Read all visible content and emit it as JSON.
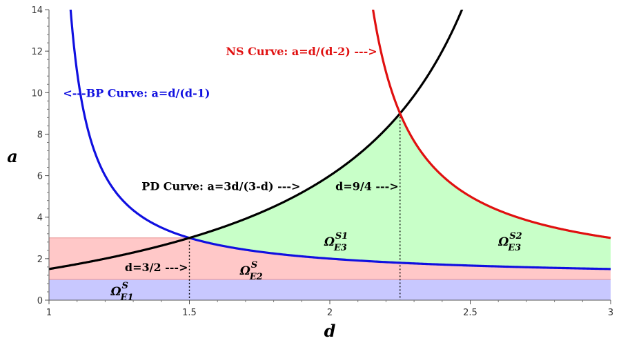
{
  "chart_data": {
    "type": "line",
    "xlabel": "d",
    "ylabel": "a",
    "xlim": [
      1,
      3
    ],
    "ylim": [
      0,
      14
    ],
    "x_ticks": [
      "1",
      "1.5",
      "2",
      "2.5",
      "3"
    ],
    "x_tick_values": [
      1,
      1.5,
      2,
      2.5,
      3
    ],
    "y_ticks": [
      "0",
      "2",
      "4",
      "6",
      "8",
      "10",
      "12",
      "14"
    ],
    "y_tick_values": [
      0,
      2,
      4,
      6,
      8,
      10,
      12,
      14
    ],
    "series": [
      {
        "key": "bp",
        "formula": "d/(d-1)",
        "color": "#1010e0",
        "domain": [
          1.05,
          3
        ]
      },
      {
        "key": "pd",
        "formula": "3d/(3-d)",
        "color": "#000000",
        "domain": [
          1,
          2.5
        ]
      },
      {
        "key": "ns",
        "formula": "d/(d-2)",
        "color": "#e01010",
        "domain": [
          2.0,
          3
        ]
      }
    ],
    "regions": [
      {
        "key": "e1",
        "color": "#c8c8ff",
        "a_range": [
          0,
          1
        ],
        "label_main": "Ω",
        "label_sup": "S",
        "label_sub": "E1",
        "label_at": [
          1.22,
          0.5
        ]
      },
      {
        "key": "e2",
        "color": "#ffc8c8",
        "a_range": [
          1,
          3
        ],
        "label_main": "Ω",
        "label_sup": "S",
        "label_sub": "E2",
        "label_at": [
          1.68,
          1.5
        ]
      },
      {
        "key": "e3s1",
        "color": "#c8ffc8",
        "label_main": "Ω",
        "label_sup": "S1",
        "label_sub": "E3",
        "label_at": [
          1.98,
          2.9
        ]
      },
      {
        "key": "e3s2",
        "color": "#c8ffc8",
        "label_main": "Ω",
        "label_sup": "S2",
        "label_sub": "E3",
        "label_at": [
          2.6,
          2.9
        ]
      }
    ],
    "vlines": [
      {
        "x": 1.5,
        "y_top": 3
      },
      {
        "x": 2.25,
        "y_top": 9
      }
    ],
    "annotations": [
      {
        "text": "NS Curve: a=d/(d-2) --->",
        "color": "#e01010",
        "x": 1.63,
        "y": 12
      },
      {
        "text": "<---BP Curve: a=d/(d-1)",
        "color": "#1010e0",
        "x": 1.05,
        "y": 10
      },
      {
        "text": "PD Curve: a=3d/(3-d) --->",
        "color": "#000000",
        "x": 1.33,
        "y": 5.5
      },
      {
        "text": "d=9/4 --->",
        "color": "#000000",
        "x": 2.02,
        "y": 5.5
      },
      {
        "text": "d=3/2 --->",
        "color": "#000000",
        "x": 1.27,
        "y": 1.6
      }
    ]
  }
}
